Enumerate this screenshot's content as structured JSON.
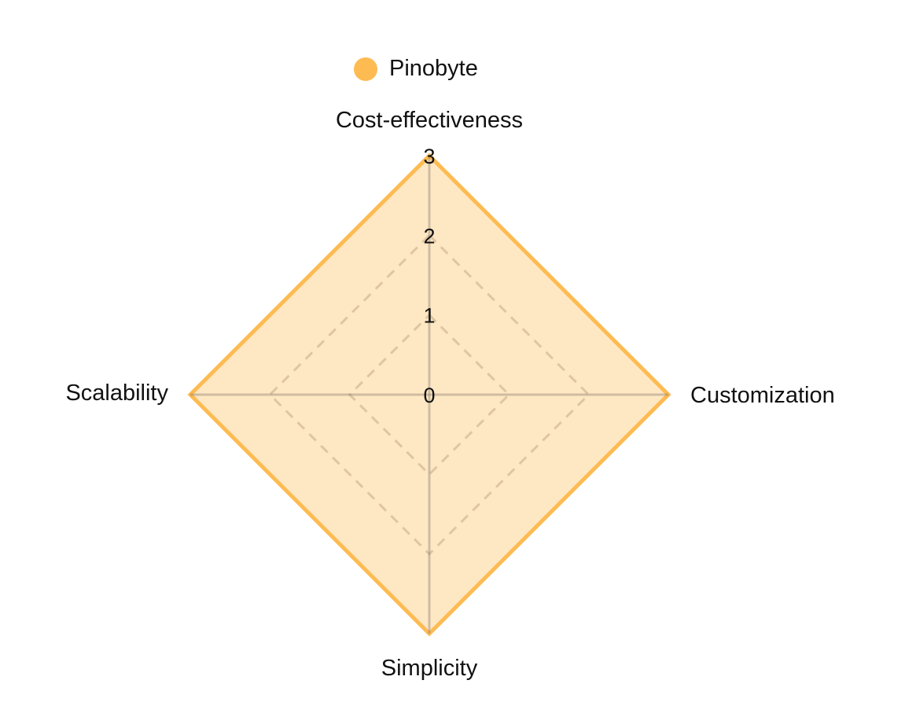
{
  "chart_data": {
    "type": "radar",
    "axes": [
      "Cost-effectiveness",
      "Customization",
      "Simplicity",
      "Scalability"
    ],
    "series": [
      {
        "name": "Pinobyte",
        "values": [
          3,
          3,
          3,
          3
        ],
        "color": "#FDBB52"
      }
    ],
    "rlim": [
      0,
      3
    ],
    "ticks": [
      "0",
      "1",
      "2",
      "3"
    ],
    "grid": true,
    "legend_position": "top-center"
  }
}
